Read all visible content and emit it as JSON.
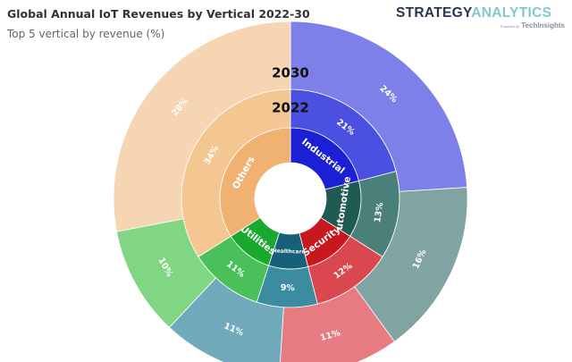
{
  "header": {
    "title": "Global Annual IoT Revenues by Vertical 2022-30",
    "subtitle": "Top 5 vertical by revenue (%)"
  },
  "logo": {
    "part1": "STRATEGY",
    "part2": "ANALYTICS",
    "powered_by": "Powered by",
    "brand": "TechInsights"
  },
  "chart_data": {
    "type": "sunburst",
    "title": "Global Annual IoT Revenues by Vertical 2022-30",
    "subtitle": "Top 5 vertical by revenue (%)",
    "ring_labels": [
      "2022",
      "2030"
    ],
    "categories": [
      "Industrial",
      "Automotive",
      "Security",
      "Healthcare",
      "Utilities",
      "Others"
    ],
    "series": [
      {
        "name": "2022",
        "values": [
          21,
          13,
          12,
          9,
          11,
          34
        ]
      },
      {
        "name": "2030",
        "values": [
          24,
          16,
          11,
          11,
          10,
          28
        ]
      }
    ],
    "colors": {
      "Industrial": [
        "#1b20d4",
        "#4b50e0",
        "#7c80e8"
      ],
      "Automotive": [
        "#1f5a53",
        "#4b7f79",
        "#80a4a1"
      ],
      "Security": [
        "#c8171f",
        "#d9474f",
        "#e67c82"
      ],
      "Healthcare": [
        "#16607a",
        "#3b8ba1",
        "#70aabb"
      ],
      "Utilities": [
        "#1aa92f",
        "#4ac05a",
        "#80d682"
      ],
      "Others": [
        "#efb271",
        "#f4c692",
        "#f6d5b2"
      ]
    }
  }
}
